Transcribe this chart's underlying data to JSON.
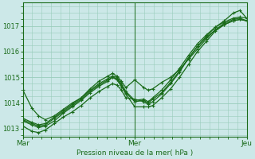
{
  "bg_color": "#cce8e8",
  "grid_color": "#99ccbb",
  "line_color": "#1a6b1a",
  "title": "Pression niveau de la mer( hPa )",
  "xtick_labels": [
    "Mar",
    "Mer",
    "Jeu"
  ],
  "xtick_positions": [
    0,
    0.5,
    1.0
  ],
  "ylim": [
    1012.7,
    1017.9
  ],
  "yticks": [
    1013,
    1014,
    1015,
    1016,
    1017
  ],
  "series": [
    [
      0.0,
      1014.5,
      0.04,
      1013.8,
      0.07,
      1013.5,
      0.1,
      1013.35,
      0.14,
      1013.5,
      0.18,
      1013.75,
      0.22,
      1014.0,
      0.26,
      1014.2,
      0.3,
      1014.55,
      0.34,
      1014.85,
      0.38,
      1015.05,
      0.4,
      1015.15,
      0.42,
      1015.05,
      0.44,
      1014.85,
      0.46,
      1014.6,
      0.5,
      1014.9,
      0.54,
      1014.6,
      0.56,
      1014.5,
      0.58,
      1014.55,
      0.62,
      1014.8,
      0.66,
      1015.0,
      0.7,
      1015.3,
      0.74,
      1015.7,
      0.78,
      1016.1,
      0.82,
      1016.5,
      0.86,
      1016.85,
      0.9,
      1017.1,
      0.94,
      1017.25,
      0.97,
      1017.3,
      1.0,
      1017.2
    ],
    [
      0.0,
      1013.3,
      0.04,
      1013.15,
      0.07,
      1013.05,
      0.1,
      1013.1,
      0.14,
      1013.3,
      0.18,
      1013.6,
      0.22,
      1013.85,
      0.26,
      1014.1,
      0.3,
      1014.4,
      0.34,
      1014.65,
      0.38,
      1014.85,
      0.4,
      1015.0,
      0.42,
      1014.9,
      0.44,
      1014.65,
      0.46,
      1014.35,
      0.5,
      1013.85,
      0.54,
      1013.85,
      0.56,
      1013.85,
      0.58,
      1013.9,
      0.62,
      1014.2,
      0.66,
      1014.55,
      0.7,
      1015.0,
      0.74,
      1015.5,
      0.78,
      1016.0,
      0.82,
      1016.4,
      0.86,
      1016.8,
      0.9,
      1017.05,
      0.94,
      1017.2,
      0.97,
      1017.25,
      1.0,
      1017.2
    ],
    [
      0.0,
      1013.1,
      0.04,
      1012.9,
      0.07,
      1012.85,
      0.1,
      1012.95,
      0.14,
      1013.2,
      0.18,
      1013.45,
      0.22,
      1013.65,
      0.26,
      1013.9,
      0.3,
      1014.2,
      0.34,
      1014.45,
      0.38,
      1014.65,
      0.4,
      1014.75,
      0.42,
      1014.7,
      0.44,
      1014.5,
      0.46,
      1014.2,
      0.5,
      1014.15,
      0.54,
      1014.05,
      0.56,
      1013.95,
      0.58,
      1014.05,
      0.62,
      1014.35,
      0.66,
      1014.75,
      0.7,
      1015.2,
      0.74,
      1015.75,
      0.78,
      1016.2,
      0.82,
      1016.6,
      0.86,
      1016.95,
      0.9,
      1017.2,
      0.94,
      1017.5,
      0.97,
      1017.6,
      1.0,
      1017.3
    ],
    [
      0.0,
      1013.35,
      0.04,
      1013.2,
      0.07,
      1013.1,
      0.1,
      1013.15,
      0.14,
      1013.4,
      0.18,
      1013.65,
      0.22,
      1013.9,
      0.26,
      1014.15,
      0.3,
      1014.45,
      0.34,
      1014.7,
      0.38,
      1014.9,
      0.4,
      1015.0,
      0.42,
      1014.95,
      0.44,
      1014.7,
      0.46,
      1014.4,
      0.5,
      1014.05,
      0.54,
      1014.1,
      0.56,
      1014.0,
      0.58,
      1014.15,
      0.62,
      1014.4,
      0.66,
      1014.8,
      0.7,
      1015.25,
      0.74,
      1015.75,
      0.78,
      1016.2,
      0.82,
      1016.55,
      0.86,
      1016.85,
      0.9,
      1017.05,
      0.94,
      1017.2,
      0.97,
      1017.25,
      1.0,
      1017.2
    ],
    [
      0.0,
      1013.4,
      0.04,
      1013.25,
      0.07,
      1013.15,
      0.1,
      1013.2,
      0.14,
      1013.45,
      0.18,
      1013.7,
      0.22,
      1013.95,
      0.26,
      1014.2,
      0.3,
      1014.5,
      0.34,
      1014.75,
      0.38,
      1014.95,
      0.4,
      1015.05,
      0.42,
      1015.0,
      0.44,
      1014.75,
      0.46,
      1014.45,
      0.5,
      1014.1,
      0.54,
      1014.15,
      0.56,
      1014.05,
      0.58,
      1014.2,
      0.62,
      1014.5,
      0.66,
      1014.9,
      0.7,
      1015.35,
      0.74,
      1015.85,
      0.78,
      1016.3,
      0.82,
      1016.65,
      0.86,
      1016.95,
      0.9,
      1017.15,
      0.94,
      1017.3,
      0.97,
      1017.35,
      1.0,
      1017.3
    ]
  ]
}
